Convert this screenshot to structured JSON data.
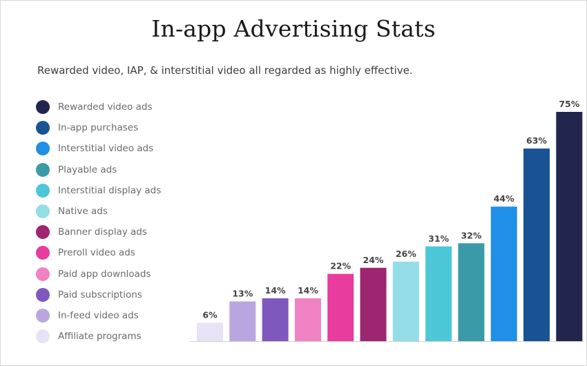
{
  "title": "In-app Advertising Stats",
  "subtitle": "Rewarded video, IAP, & interstitial video all regarded as highly effective.",
  "chart_data": {
    "type": "bar",
    "title": "In-app Advertising Stats",
    "subtitle": "Rewarded video, IAP, & interstitial video all regarded as highly effective.",
    "categories": [
      "Affiliate programs",
      "In-feed video ads",
      "Paid subscriptions",
      "Paid app downloads",
      "Preroll video ads",
      "Banner display ads",
      "Native ads",
      "Interstitial display ads",
      "Playable ads",
      "Interstitial video ads",
      "In-app purchases",
      "Rewarded video ads"
    ],
    "values": [
      6,
      13,
      14,
      14,
      22,
      24,
      26,
      31,
      32,
      44,
      63,
      75
    ],
    "value_labels": [
      "6%",
      "13%",
      "14%",
      "14%",
      "22%",
      "24%",
      "26%",
      "31%",
      "32%",
      "44%",
      "63%",
      "75%"
    ],
    "colors": [
      "#e8e2f7",
      "#b9a6e0",
      "#7f58be",
      "#ef82c2",
      "#e83d9f",
      "#9e2570",
      "#93dee6",
      "#4cc7d7",
      "#3b9aa7",
      "#1f8fe7",
      "#1a5394",
      "#22264e"
    ],
    "xlabel": "",
    "ylabel": "",
    "ylim": [
      0,
      75
    ],
    "grid": false,
    "legend_position": "left",
    "legend_order": "descending"
  },
  "legend": [
    {
      "label": "Rewarded video ads",
      "color": "#22264e"
    },
    {
      "label": "In-app purchases",
      "color": "#1a5394"
    },
    {
      "label": "Interstitial video ads",
      "color": "#1f8fe7"
    },
    {
      "label": "Playable ads",
      "color": "#3b9aa7"
    },
    {
      "label": "Interstitial display ads",
      "color": "#4cc7d7"
    },
    {
      "label": "Native ads",
      "color": "#93dee6"
    },
    {
      "label": "Banner display ads",
      "color": "#9e2570"
    },
    {
      "label": "Preroll video ads",
      "color": "#e83d9f"
    },
    {
      "label": "Paid app downloads",
      "color": "#ef82c2"
    },
    {
      "label": "Paid subscriptions",
      "color": "#7f58be"
    },
    {
      "label": "In-feed video ads",
      "color": "#b9a6e0"
    },
    {
      "label": "Affiliate programs",
      "color": "#e8e2f7"
    }
  ]
}
